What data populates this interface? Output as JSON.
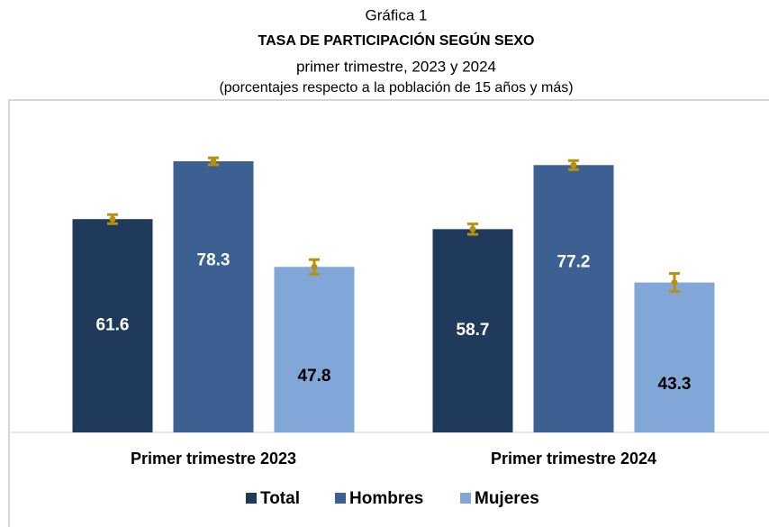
{
  "chart_data": {
    "type": "bar",
    "label": "Gráfica 1",
    "title": "TASA DE PARTICIPACIÓN SEGÚN SEXO",
    "subtitle": "primer trimestre, 2023 y 2024",
    "note": "(porcentajes respecto a la población de 15 años y más)",
    "categories": [
      "Primer trimestre 2023",
      "Primer trimestre 2024"
    ],
    "series": [
      {
        "name": "Total",
        "color": "#203a5c",
        "label_color": "#ffffff",
        "values": [
          61.6,
          58.7
        ],
        "errors": [
          1.3,
          1.5
        ]
      },
      {
        "name": "Hombres",
        "color": "#3b6091",
        "label_color": "#ffffff",
        "values": [
          78.3,
          77.2
        ],
        "errors": [
          1.0,
          1.3
        ]
      },
      {
        "name": "Mujeres",
        "color": "#80a7d7",
        "label_color": "#000000",
        "values": [
          47.8,
          43.3
        ],
        "errors": [
          2.1,
          2.6
        ]
      }
    ],
    "error_color": "#b8900f",
    "ylim": [
      0,
      96
    ],
    "legend": "bottom"
  }
}
